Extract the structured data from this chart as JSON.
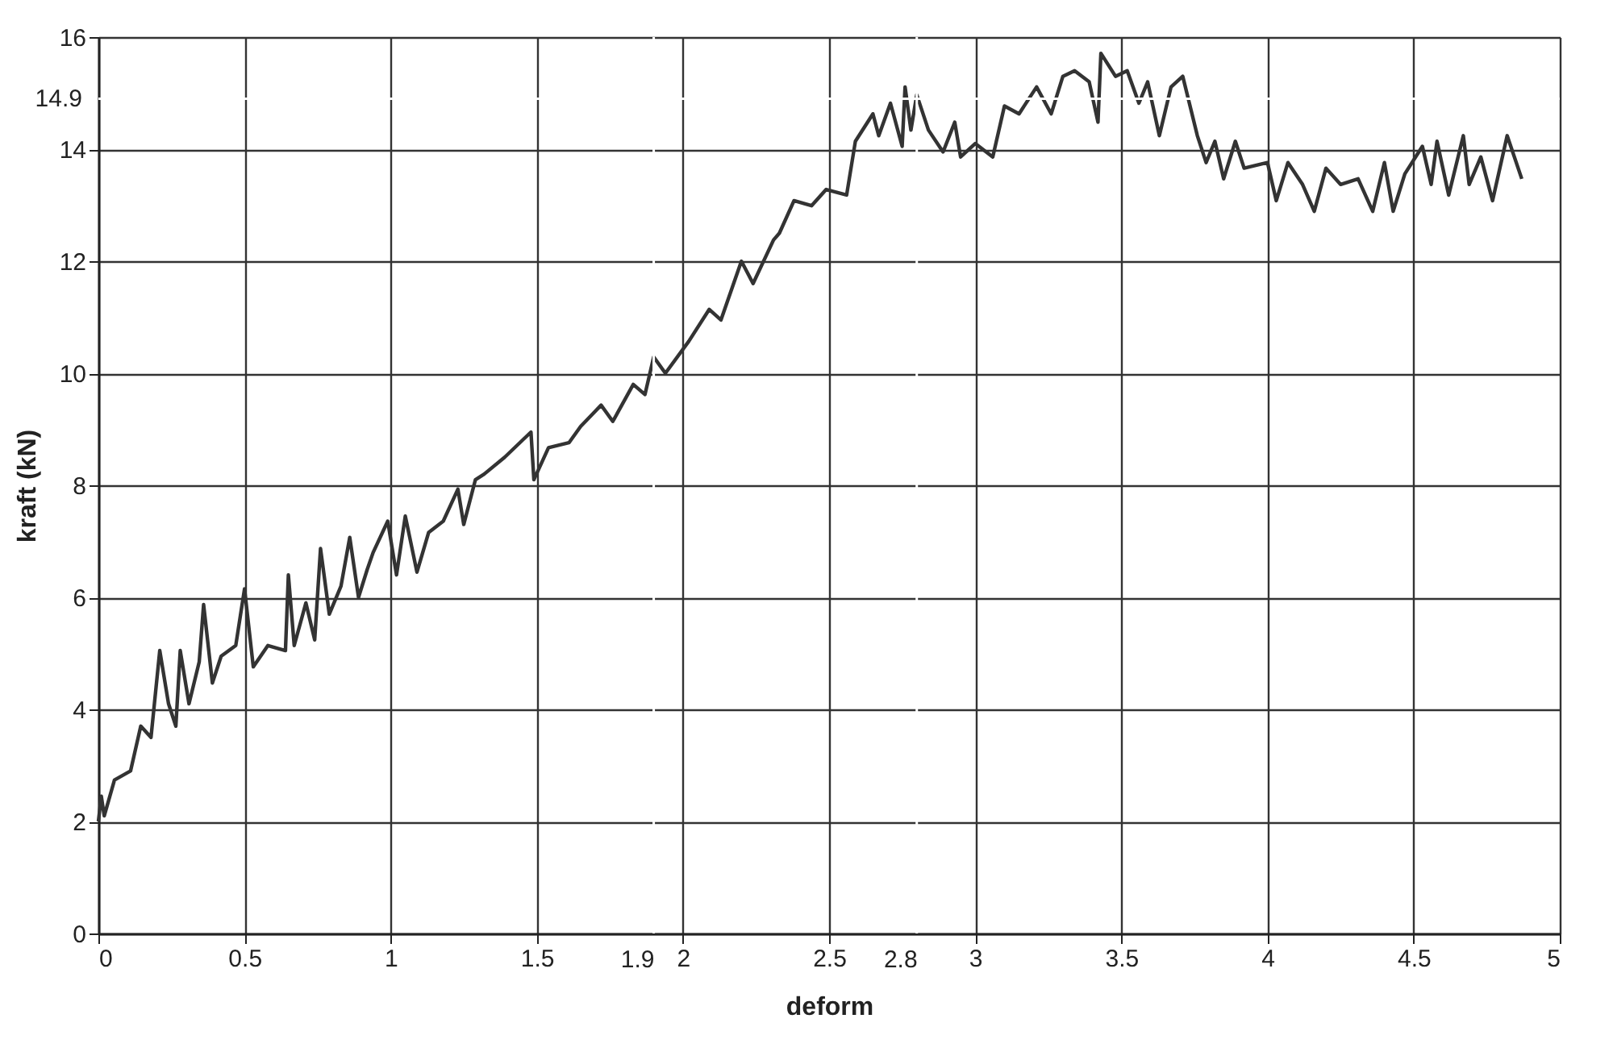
{
  "chart_data": {
    "type": "line",
    "xlabel": "deform",
    "ylabel": "kraft (kN)",
    "color": "#333333",
    "line_style": "solid",
    "marker": "none",
    "grid": true,
    "xlim": [
      0,
      5
    ],
    "ylim": [
      0,
      16
    ],
    "xticks": [
      0,
      0.5,
      1,
      1.5,
      2,
      2.5,
      3,
      3.5,
      4,
      4.5,
      5
    ],
    "yticks": [
      0,
      2,
      4,
      6,
      8,
      10,
      12,
      14,
      16
    ],
    "ref_lines": [
      {
        "axis": "x",
        "value": 1.9,
        "label": "1.9",
        "color": "#ffffff"
      },
      {
        "axis": "x",
        "value": 2.8,
        "label": "2.8",
        "color": "#ffffff"
      },
      {
        "axis": "y",
        "value": 14.9,
        "label": "14.9",
        "color": "#ffffff"
      }
    ],
    "x": [
      0,
      0.01,
      0.02,
      0.055,
      0.11,
      0.145,
      0.18,
      0.21,
      0.24,
      0.265,
      0.28,
      0.31,
      0.345,
      0.36,
      0.39,
      0.42,
      0.47,
      0.5,
      0.53,
      0.58,
      0.64,
      0.65,
      0.67,
      0.71,
      0.74,
      0.76,
      0.79,
      0.83,
      0.86,
      0.89,
      0.92,
      0.94,
      0.99,
      1.02,
      1.05,
      1.09,
      1.13,
      1.18,
      1.23,
      1.25,
      1.29,
      1.32,
      1.39,
      1.48,
      1.49,
      1.54,
      1.61,
      1.65,
      1.72,
      1.76,
      1.83,
      1.87,
      1.9,
      1.94,
      2.02,
      2.09,
      2.13,
      2.2,
      2.24,
      2.31,
      2.33,
      2.38,
      2.44,
      2.49,
      2.56,
      2.59,
      2.65,
      2.67,
      2.71,
      2.75,
      2.76,
      2.78,
      2.8,
      2.84,
      2.89,
      2.93,
      2.95,
      3.0,
      3.06,
      3.1,
      3.15,
      3.21,
      3.26,
      3.3,
      3.34,
      3.39,
      3.42,
      3.43,
      3.48,
      3.52,
      3.56,
      3.59,
      3.63,
      3.67,
      3.71,
      3.76,
      3.79,
      3.82,
      3.85,
      3.89,
      3.92,
      4.0,
      4.03,
      4.07,
      4.12,
      4.16,
      4.2,
      4.25,
      4.31,
      4.36,
      4.4,
      4.43,
      4.47,
      4.53,
      4.56,
      4.58,
      4.62,
      4.67,
      4.69,
      4.73,
      4.77,
      4.82,
      4.87
    ],
    "values": [
      2.0,
      2.45,
      2.1,
      2.74,
      2.9,
      3.7,
      3.5,
      5.05,
      4.1,
      3.7,
      5.05,
      4.1,
      4.85,
      5.87,
      4.47,
      4.95,
      5.14,
      6.15,
      4.76,
      5.14,
      5.05,
      6.4,
      5.14,
      5.9,
      5.24,
      6.87,
      5.7,
      6.2,
      7.07,
      6.0,
      6.5,
      6.8,
      7.36,
      6.4,
      7.45,
      6.45,
      7.16,
      7.36,
      7.93,
      7.3,
      8.1,
      8.2,
      8.5,
      8.95,
      8.1,
      8.67,
      8.76,
      9.05,
      9.43,
      9.14,
      9.8,
      9.62,
      10.29,
      10.0,
      10.57,
      11.14,
      10.95,
      12.0,
      11.6,
      12.38,
      12.5,
      13.08,
      12.99,
      13.28,
      13.18,
      14.14,
      14.63,
      14.24,
      14.82,
      14.05,
      15.11,
      14.34,
      14.97,
      14.34,
      13.95,
      14.48,
      13.86,
      14.1,
      13.86,
      14.77,
      14.63,
      15.11,
      14.63,
      15.3,
      15.4,
      15.2,
      14.48,
      15.71,
      15.3,
      15.4,
      14.82,
      15.2,
      14.24,
      15.11,
      15.3,
      14.24,
      13.76,
      14.14,
      13.47,
      14.14,
      13.66,
      13.76,
      13.08,
      13.76,
      13.37,
      12.89,
      13.66,
      13.37,
      13.47,
      12.89,
      13.76,
      12.89,
      13.56,
      14.05,
      13.37,
      14.14,
      13.18,
      14.24,
      13.37,
      13.86,
      13.08,
      14.24,
      13.47
    ]
  }
}
